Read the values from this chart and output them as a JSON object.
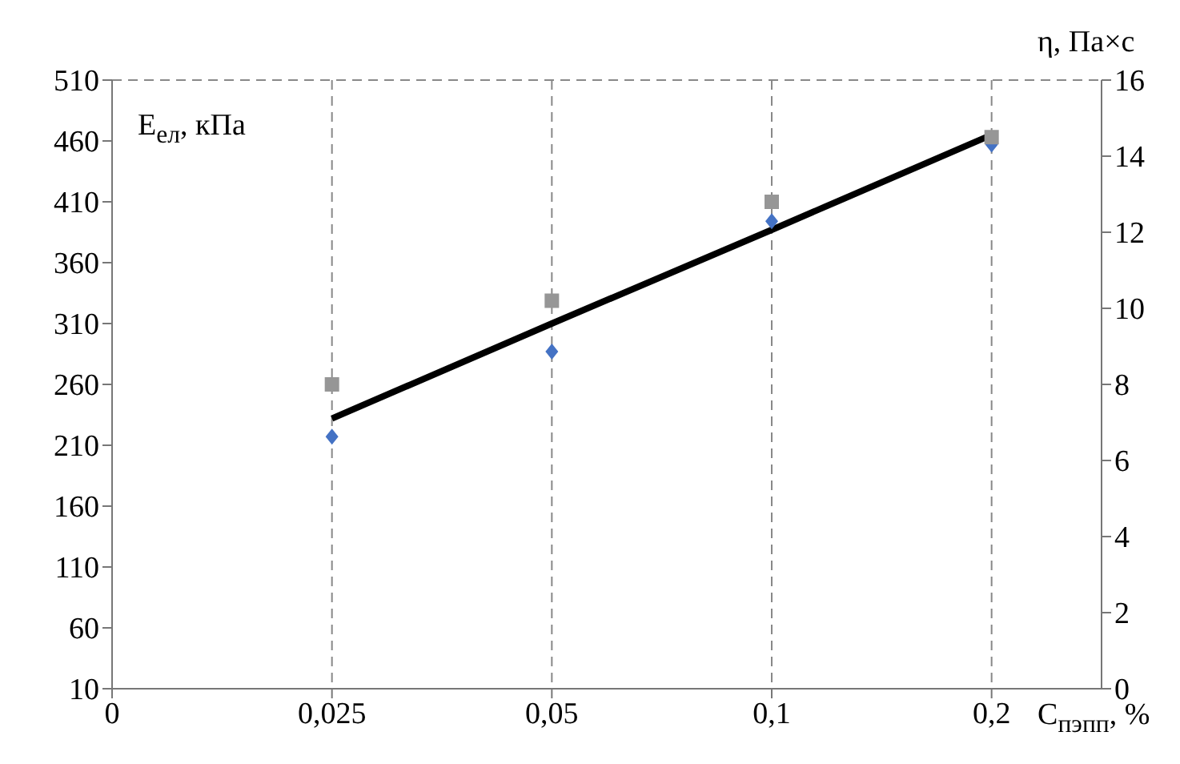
{
  "chart_data": {
    "type": "scatter",
    "xlabel": "C$_{пэпп}$, %",
    "ylabel": "E$_{ел}$, кПа",
    "y2label": "η, Па×с",
    "categories": [
      "0",
      "0,025",
      "0,05",
      "0,1",
      "0,2"
    ],
    "series": [
      {
        "color": "#4472c4",
        "marker": "diamond",
        "values": [
          null,
          217,
          287,
          394,
          457
        ]
      },
      {
        "color": "#969696",
        "marker": "square",
        "axis": "y2",
        "values": [
          null,
          8.0,
          10.2,
          12.8,
          14.5
        ]
      },
      {
        "type": "line",
        "color": "#000000",
        "marker": "none",
        "values": [
          null,
          232,
          310,
          387,
          465
        ]
      }
    ],
    "ylim": [
      10,
      510
    ],
    "yticks": [
      10,
      60,
      110,
      160,
      210,
      260,
      310,
      360,
      410,
      460,
      510
    ],
    "y2lim": [
      0,
      16
    ],
    "y2ticks": [
      0,
      2,
      4,
      6,
      8,
      10,
      12,
      14,
      16
    ],
    "grid": true
  }
}
